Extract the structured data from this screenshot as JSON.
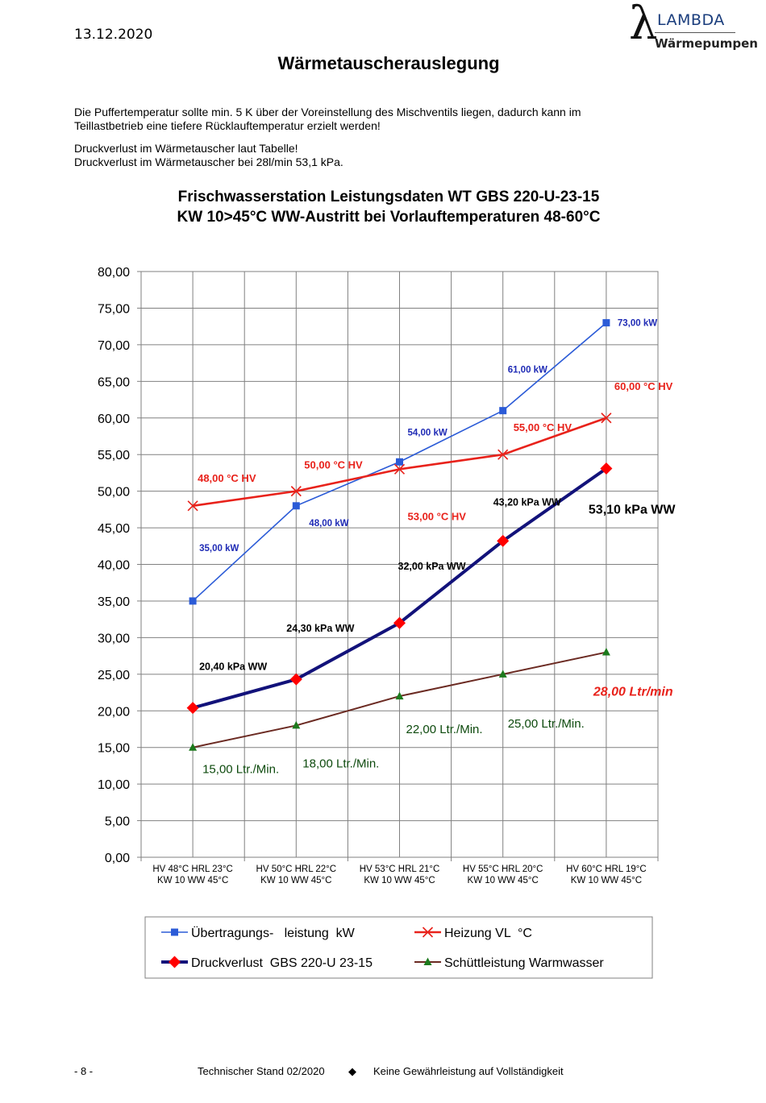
{
  "header": {
    "date": "13.12.2020",
    "logo": {
      "symbol": "λ",
      "name": "LAMBDA",
      "tagline": "Wärmepumpen"
    }
  },
  "page_title": "Wärmetauscherauslegung",
  "intro": {
    "line1": "Die Puffertemperatur sollte min. 5 K über der Voreinstellung des Mischventils liegen, dadurch kann im",
    "line2": "Teillastbetrieb eine tiefere Rücklauftemperatur erzielt werden!",
    "line3": "Druckverlust im Wärmetauscher laut Tabelle!",
    "line4": "Druckverlust im Wärmetauscher bei 28l/min 53,1 kPa."
  },
  "chart_data": {
    "type": "line",
    "title": "Frischwasserstation Leistungsdaten WT GBS 220-U-23-15",
    "subtitle": "KW 10>45°C WW-Austritt bei Vorlauftemperaturen 48-60°C",
    "categories": [
      [
        "HV 48°C HRL 23°C",
        "KW 10 WW 45°C"
      ],
      [
        "HV 50°C HRL 22°C",
        "KW 10 WW 45°C"
      ],
      [
        "HV 53°C HRL 21°C",
        "KW 10 WW 45°C"
      ],
      [
        "HV 55°C HRL 20°C",
        "KW 10 WW 45°C"
      ],
      [
        "HV 60°C HRL 19°C",
        "KW 10 WW 45°C"
      ]
    ],
    "ylim": [
      0,
      80
    ],
    "yticks": [
      "0,00",
      "5,00",
      "10,00",
      "15,00",
      "20,00",
      "25,00",
      "30,00",
      "35,00",
      "40,00",
      "45,00",
      "50,00",
      "55,00",
      "60,00",
      "65,00",
      "70,00",
      "75,00",
      "80,00"
    ],
    "grid": true,
    "legend_position": "bottom",
    "series": [
      {
        "name": "Übertragungs-   leistung  kW",
        "color": "#2b5bd7",
        "marker": "square",
        "values": [
          35,
          48,
          54,
          61,
          73
        ],
        "labels": [
          "35,00 kW",
          "48,00 kW",
          "54,00 kW",
          "61,00 kW",
          "73,00 kW"
        ]
      },
      {
        "name": "Heizung VL  °C",
        "color": "#e8221b",
        "marker": "x",
        "values": [
          48,
          50,
          53,
          55,
          60
        ],
        "labels": [
          "48,00 °C HV",
          "50,00 °C HV",
          "53,00 °C HV",
          "55,00 °C HV",
          "60,00 °C HV"
        ]
      },
      {
        "name": "Druckverlust  GBS 220-U 23-15",
        "color": "#12127a",
        "marker": "diamond",
        "values": [
          20.4,
          24.3,
          32.0,
          43.2,
          53.1
        ],
        "labels": [
          "20,40 kPa WW",
          "24,30 kPa WW",
          "32,00 kPa WW",
          "43,20 kPa WW",
          "53,10 kPa WW"
        ]
      },
      {
        "name": "Schüttleistung Warmwasser",
        "color": "#6b2a22",
        "marker": "triangle",
        "values": [
          15,
          18,
          22,
          25,
          28
        ],
        "labels": [
          "15,00 Ltr./Min.",
          "18,00 Ltr./Min.",
          "22,00 Ltr./Min.",
          "25,00 Ltr./Min.",
          "28,00 Ltr/min"
        ]
      }
    ]
  },
  "footer": {
    "page": "- 8 -",
    "stand": "Technischer Stand 02/2020",
    "bullet": "◆",
    "disclaimer": "Keine Gewährleistung auf Vollständigkeit"
  }
}
